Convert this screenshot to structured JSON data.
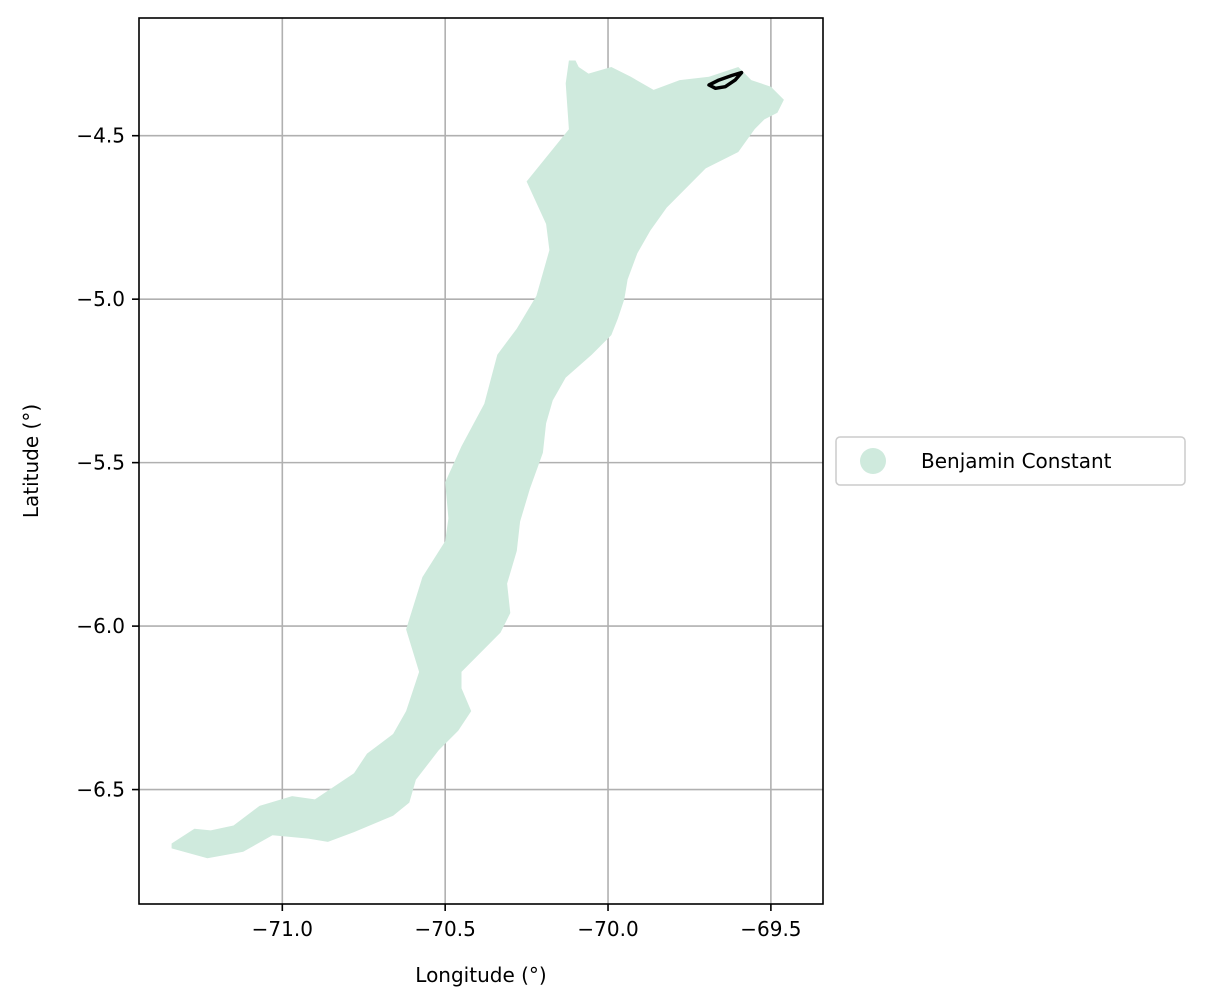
{
  "chart_data": {
    "type": "map",
    "xlabel": "Longitude (°)",
    "ylabel": "Latitude (°)",
    "xlim": [
      -71.44,
      -69.34
    ],
    "ylim": [
      -6.85,
      -4.14
    ],
    "xticks": [
      -71.0,
      -70.5,
      -70.0,
      -69.5
    ],
    "xtick_labels": [
      "−71.0",
      "−70.5",
      "−70.0",
      "−69.5"
    ],
    "yticks": [
      -4.5,
      -5.0,
      -5.5,
      -6.0,
      -6.5
    ],
    "ytick_labels": [
      "−4.5",
      "−5.0",
      "−5.5",
      "−6.0",
      "−6.5"
    ],
    "grid": true,
    "legend_placement": "center-left outside plot",
    "legend": [
      {
        "label": "Benjamin Constant",
        "color": "#cfeadd",
        "marker": "circle"
      }
    ],
    "regions": [
      {
        "name": "Benjamin Constant",
        "color": "#cfeadd",
        "outline": [
          [
            -71.34,
            -6.665
          ],
          [
            -71.27,
            -6.62
          ],
          [
            -71.22,
            -6.625
          ],
          [
            -71.15,
            -6.61
          ],
          [
            -71.07,
            -6.55
          ],
          [
            -70.97,
            -6.52
          ],
          [
            -70.9,
            -6.53
          ],
          [
            -70.78,
            -6.45
          ],
          [
            -70.74,
            -6.39
          ],
          [
            -70.66,
            -6.33
          ],
          [
            -70.62,
            -6.26
          ],
          [
            -70.58,
            -6.14
          ],
          [
            -70.62,
            -6.01
          ],
          [
            -70.57,
            -5.85
          ],
          [
            -70.5,
            -5.74
          ],
          [
            -70.49,
            -5.67
          ],
          [
            -70.5,
            -5.56
          ],
          [
            -70.45,
            -5.45
          ],
          [
            -70.38,
            -5.32
          ],
          [
            -70.34,
            -5.17
          ],
          [
            -70.28,
            -5.09
          ],
          [
            -70.22,
            -4.99
          ],
          [
            -70.18,
            -4.85
          ],
          [
            -70.19,
            -4.77
          ],
          [
            -70.25,
            -4.64
          ],
          [
            -70.12,
            -4.48
          ],
          [
            -70.13,
            -4.34
          ],
          [
            -70.12,
            -4.27
          ],
          [
            -70.1,
            -4.27
          ],
          [
            -70.09,
            -4.29
          ],
          [
            -70.06,
            -4.31
          ],
          [
            -69.99,
            -4.29
          ],
          [
            -69.93,
            -4.32
          ],
          [
            -69.86,
            -4.36
          ],
          [
            -69.78,
            -4.33
          ],
          [
            -69.69,
            -4.32
          ],
          [
            -69.6,
            -4.29
          ],
          [
            -69.56,
            -4.33
          ],
          [
            -69.5,
            -4.35
          ],
          [
            -69.46,
            -4.39
          ],
          [
            -69.48,
            -4.43
          ],
          [
            -69.52,
            -4.45
          ],
          [
            -69.55,
            -4.48
          ],
          [
            -69.6,
            -4.55
          ],
          [
            -69.7,
            -4.6
          ],
          [
            -69.76,
            -4.66
          ],
          [
            -69.82,
            -4.72
          ],
          [
            -69.87,
            -4.79
          ],
          [
            -69.91,
            -4.86
          ],
          [
            -69.94,
            -4.94
          ],
          [
            -69.95,
            -5.0
          ],
          [
            -69.97,
            -5.06
          ],
          [
            -69.99,
            -5.11
          ],
          [
            -70.05,
            -5.17
          ],
          [
            -70.13,
            -5.24
          ],
          [
            -70.17,
            -5.31
          ],
          [
            -70.19,
            -5.38
          ],
          [
            -70.2,
            -5.47
          ],
          [
            -70.24,
            -5.58
          ],
          [
            -70.27,
            -5.68
          ],
          [
            -70.28,
            -5.77
          ],
          [
            -70.31,
            -5.87
          ],
          [
            -70.3,
            -5.96
          ],
          [
            -70.33,
            -6.02
          ],
          [
            -70.39,
            -6.08
          ],
          [
            -70.45,
            -6.14
          ],
          [
            -70.45,
            -6.19
          ],
          [
            -70.42,
            -6.26
          ],
          [
            -70.46,
            -6.32
          ],
          [
            -70.52,
            -6.38
          ],
          [
            -70.59,
            -6.47
          ],
          [
            -70.61,
            -6.54
          ],
          [
            -70.66,
            -6.58
          ],
          [
            -70.78,
            -6.63
          ],
          [
            -70.86,
            -6.66
          ],
          [
            -70.92,
            -6.65
          ],
          [
            -71.03,
            -6.64
          ],
          [
            -71.12,
            -6.69
          ],
          [
            -71.23,
            -6.71
          ],
          [
            -71.34,
            -6.68
          ]
        ]
      }
    ],
    "outlines": [
      {
        "name": "black outline",
        "color": "#000000",
        "points": [
          [
            -69.69,
            -4.345
          ],
          [
            -69.66,
            -4.33
          ],
          [
            -69.62,
            -4.316
          ],
          [
            -69.59,
            -4.307
          ],
          [
            -69.61,
            -4.33
          ],
          [
            -69.64,
            -4.35
          ],
          [
            -69.67,
            -4.355
          ],
          [
            -69.69,
            -4.345
          ]
        ]
      }
    ]
  }
}
